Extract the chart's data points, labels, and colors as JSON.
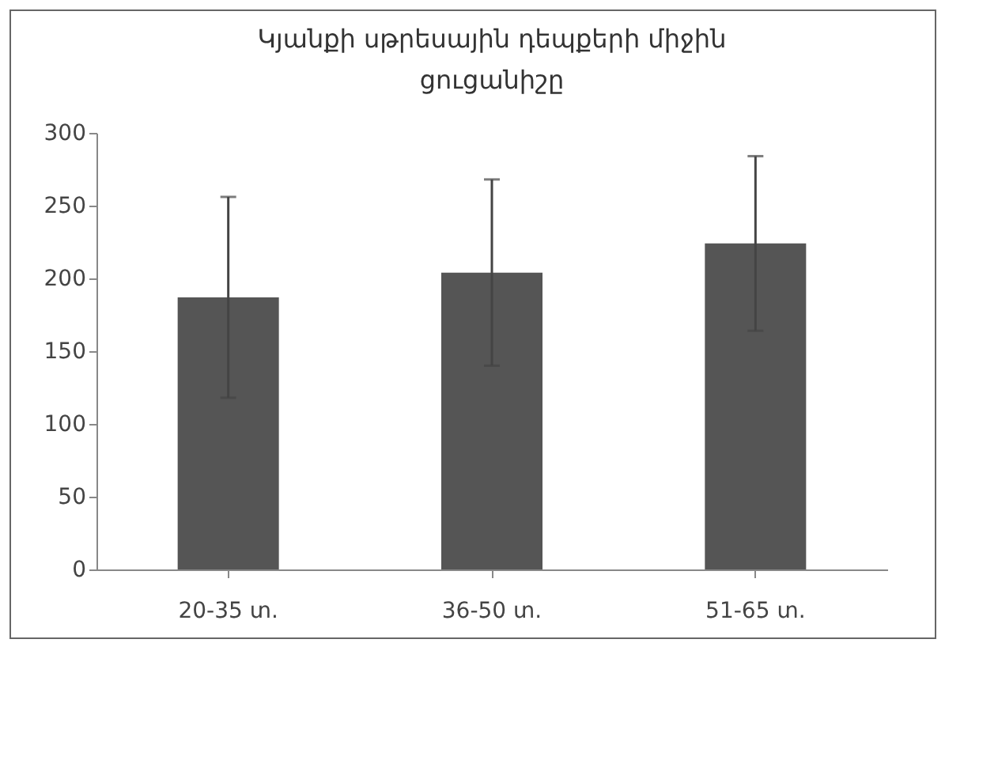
{
  "chart_data": {
    "type": "bar",
    "title": "Կյանքի սթրեսային դեպքերի միջին ցուցանիշը",
    "categories": [
      "20-35 տ.",
      "36-50 տ.",
      "51-65 տ."
    ],
    "values": [
      187,
      204,
      224
    ],
    "errors": [
      69,
      64,
      60
    ],
    "color": "#555555",
    "ylim": [
      0,
      300
    ],
    "yticks": [
      0,
      50,
      100,
      150,
      200,
      250,
      300
    ],
    "grid": false
  }
}
